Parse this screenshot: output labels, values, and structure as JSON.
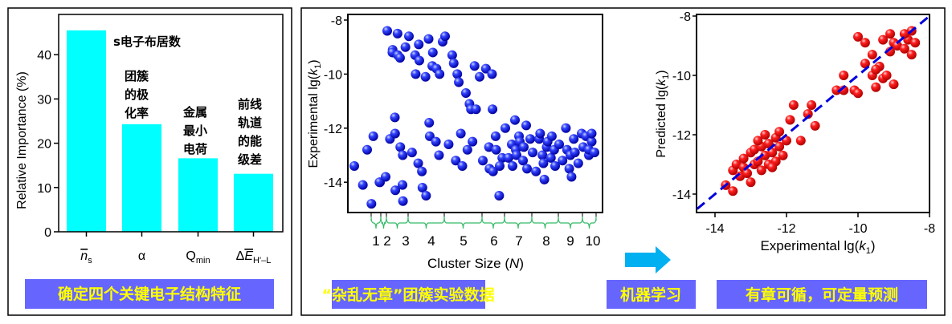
{
  "colors": {
    "bar": "#00ffff",
    "caption_bg": "#6666ff",
    "caption_text": "#ffff00",
    "blue_ball": "#1a1aff",
    "red_ball": "#ff1a1a",
    "fit_line": "#0000dd",
    "arrow": "#00b0f0",
    "brace": "#33bb66"
  },
  "panel_left": {
    "caption": "确定四个关键电子结构特征",
    "annotations": [
      "s电子布居数",
      "团簇",
      "的极",
      "化率",
      "金属",
      "最小",
      "电荷",
      "前线",
      "轨道",
      "的能",
      "级差"
    ]
  },
  "panel_middle": {
    "caption": "“杂乱无章”团簇实验数据"
  },
  "ml_label": "机器学习",
  "panel_right": {
    "caption": "有章可循，可定量预测"
  },
  "chart_data": [
    {
      "type": "bar",
      "title": "",
      "xlabel": "",
      "ylabel": "Relative Importance (%)",
      "ylim": [
        0,
        48
      ],
      "yticks": [
        "0",
        "10",
        "20",
        "30",
        "40"
      ],
      "categories": [
        {
          "main": "n",
          "sub": "s",
          "prefix": ""
        },
        {
          "main": "α",
          "sub": "",
          "prefix": ""
        },
        {
          "main": "Q",
          "sub": "min",
          "prefix": ""
        },
        {
          "main": "E",
          "sub": "H'–L",
          "prefix": "Δ"
        }
      ],
      "values": [
        45.5,
        24.3,
        16.6,
        13.1
      ]
    },
    {
      "type": "scatter",
      "ylabel": {
        "pre": "Experimental lg(",
        "var": "k",
        "sub": "1",
        "post": ")"
      },
      "xlabel": {
        "pre": "Cluster Size (",
        "var": "N",
        "post": ")"
      },
      "ylim": [
        -15,
        -7.8
      ],
      "yticks": [
        "-8",
        "-10",
        "-12",
        "-14"
      ],
      "groups": [
        {
          "label": "1",
          "y": [
            -13.4,
            -14.1,
            -14.8,
            -14.0
          ]
        },
        {
          "label": "2",
          "y": [
            -12.8,
            -12.3,
            -14.0,
            -13.8
          ]
        },
        {
          "label": "3",
          "y": [
            -8.4,
            -12.4,
            -9.1,
            -14.3,
            -9.2,
            -12.2,
            -9.3,
            -11.6,
            -8.5,
            -12.7,
            -14.7,
            -9.4,
            -13.0,
            -9.0,
            -14.1
          ]
        },
        {
          "label": "4",
          "y": [
            -8.6,
            -12.9,
            -9.3,
            -13.3,
            -10.0,
            -8.9,
            -13.6,
            -9.5,
            -14.2,
            -10.1,
            -8.7,
            -14.5,
            -11.8,
            -9.7,
            -12.3,
            -9.2,
            -12.5,
            -13.0,
            -9.8,
            -10.0,
            -8.8
          ]
        },
        {
          "label": "5",
          "y": [
            -8.6,
            -12.6,
            -9.3,
            -13.2,
            -9.6,
            -10.0,
            -12.2,
            -10.3,
            -13.4,
            -10.7,
            -11.1,
            -12.8,
            -11.3,
            -9.7,
            -12.5,
            -11.3,
            -10.1
          ]
        },
        {
          "label": "6",
          "y": [
            -13.2,
            -9.8,
            -12.7,
            -10.0,
            -13.5,
            -11.3,
            -12.3,
            -13.6,
            -12.8,
            -14.5,
            -13.1,
            -13.4
          ]
        },
        {
          "label": "7",
          "y": [
            -12.0,
            -13.1,
            -12.6,
            -11.7,
            -13.4,
            -12.8,
            -12.3,
            -13.0,
            -12.5,
            -13.2,
            -11.9,
            -12.7,
            -13.5,
            -12.4
          ]
        },
        {
          "label": "8",
          "y": [
            -12.9,
            -13.6,
            -12.4,
            -13.0,
            -12.2,
            -13.3,
            -12.7,
            -13.9,
            -12.5,
            -13.1,
            -12.8,
            -12.3,
            -13.4
          ]
        },
        {
          "label": "9",
          "y": [
            -12.6,
            -13.2,
            -12.0,
            -13.5,
            -12.8,
            -13.0,
            -12.4,
            -13.8,
            -12.9,
            -13.3,
            -12.2
          ]
        },
        {
          "label": "10",
          "y": [
            -12.7,
            -12.3,
            -13.0,
            -12.5,
            -12.8,
            -12.2,
            -12.9
          ]
        }
      ]
    },
    {
      "type": "scatter",
      "xlabel": {
        "pre": "Experimental lg(",
        "var": "k",
        "sub": "1",
        "post": ")"
      },
      "ylabel": {
        "pre": "Predicted lg(",
        "var": "k",
        "sub": "1",
        "post": ")"
      },
      "xlim": [
        -14.5,
        -8
      ],
      "ylim": [
        -14.6,
        -7.95
      ],
      "xticks": [
        "-14",
        "-12",
        "-10",
        "-8"
      ],
      "yticks": [
        "-8",
        "-10",
        "-12",
        "-14"
      ],
      "fit_line": [
        [
          -14.5,
          -14.5
        ],
        [
          -8,
          -8
        ]
      ],
      "points": [
        [
          -13.7,
          -13.7
        ],
        [
          -13.5,
          -13.9
        ],
        [
          -13.5,
          -13.2
        ],
        [
          -13.4,
          -13.0
        ],
        [
          -13.3,
          -13.4
        ],
        [
          -13.2,
          -13.1
        ],
        [
          -13.2,
          -12.8
        ],
        [
          -13.1,
          -13.3
        ],
        [
          -13.0,
          -12.6
        ],
        [
          -12.9,
          -13.0
        ],
        [
          -12.9,
          -12.5
        ],
        [
          -12.8,
          -12.9
        ],
        [
          -12.7,
          -12.4
        ],
        [
          -12.7,
          -13.2
        ],
        [
          -12.6,
          -12.7
        ],
        [
          -12.5,
          -12.3
        ],
        [
          -12.5,
          -13.0
        ],
        [
          -12.4,
          -12.6
        ],
        [
          -12.3,
          -12.1
        ],
        [
          -12.3,
          -12.9
        ],
        [
          -12.2,
          -12.4
        ],
        [
          -12.2,
          -11.9
        ],
        [
          -12.1,
          -12.7
        ],
        [
          -12.0,
          -12.2
        ],
        [
          -12.4,
          -13.1
        ],
        [
          -12.8,
          -12.2
        ],
        [
          -13.0,
          -13.6
        ],
        [
          -12.6,
          -12.0
        ],
        [
          -11.9,
          -11.5
        ],
        [
          -11.8,
          -11.0
        ],
        [
          -11.6,
          -12.2
        ],
        [
          -11.4,
          -11.3
        ],
        [
          -11.3,
          -11.0
        ],
        [
          -11.2,
          -11.7
        ],
        [
          -10.6,
          -10.5
        ],
        [
          -10.4,
          -10.0
        ],
        [
          -10.1,
          -10.5
        ],
        [
          -10.0,
          -10.6
        ],
        [
          -10.0,
          -8.7
        ],
        [
          -9.8,
          -9.6
        ],
        [
          -9.6,
          -9.3
        ],
        [
          -9.5,
          -10.4
        ],
        [
          -9.4,
          -9.7
        ],
        [
          -9.3,
          -10.1
        ],
        [
          -9.2,
          -10.0
        ],
        [
          -9.1,
          -9.2
        ],
        [
          -9.0,
          -8.9
        ],
        [
          -9.0,
          -10.3
        ],
        [
          -8.9,
          -9.0
        ],
        [
          -9.6,
          -10.0
        ],
        [
          -9.3,
          -8.8
        ],
        [
          -9.1,
          -8.6
        ],
        [
          -8.7,
          -9.1
        ],
        [
          -8.6,
          -8.8
        ],
        [
          -8.5,
          -9.3
        ],
        [
          -8.5,
          -8.5
        ],
        [
          -8.4,
          -8.9
        ],
        [
          -8.7,
          -8.6
        ],
        [
          -9.5,
          -9.8
        ],
        [
          -10.4,
          -10.5
        ],
        [
          -9.8,
          -8.9
        ]
      ]
    }
  ]
}
